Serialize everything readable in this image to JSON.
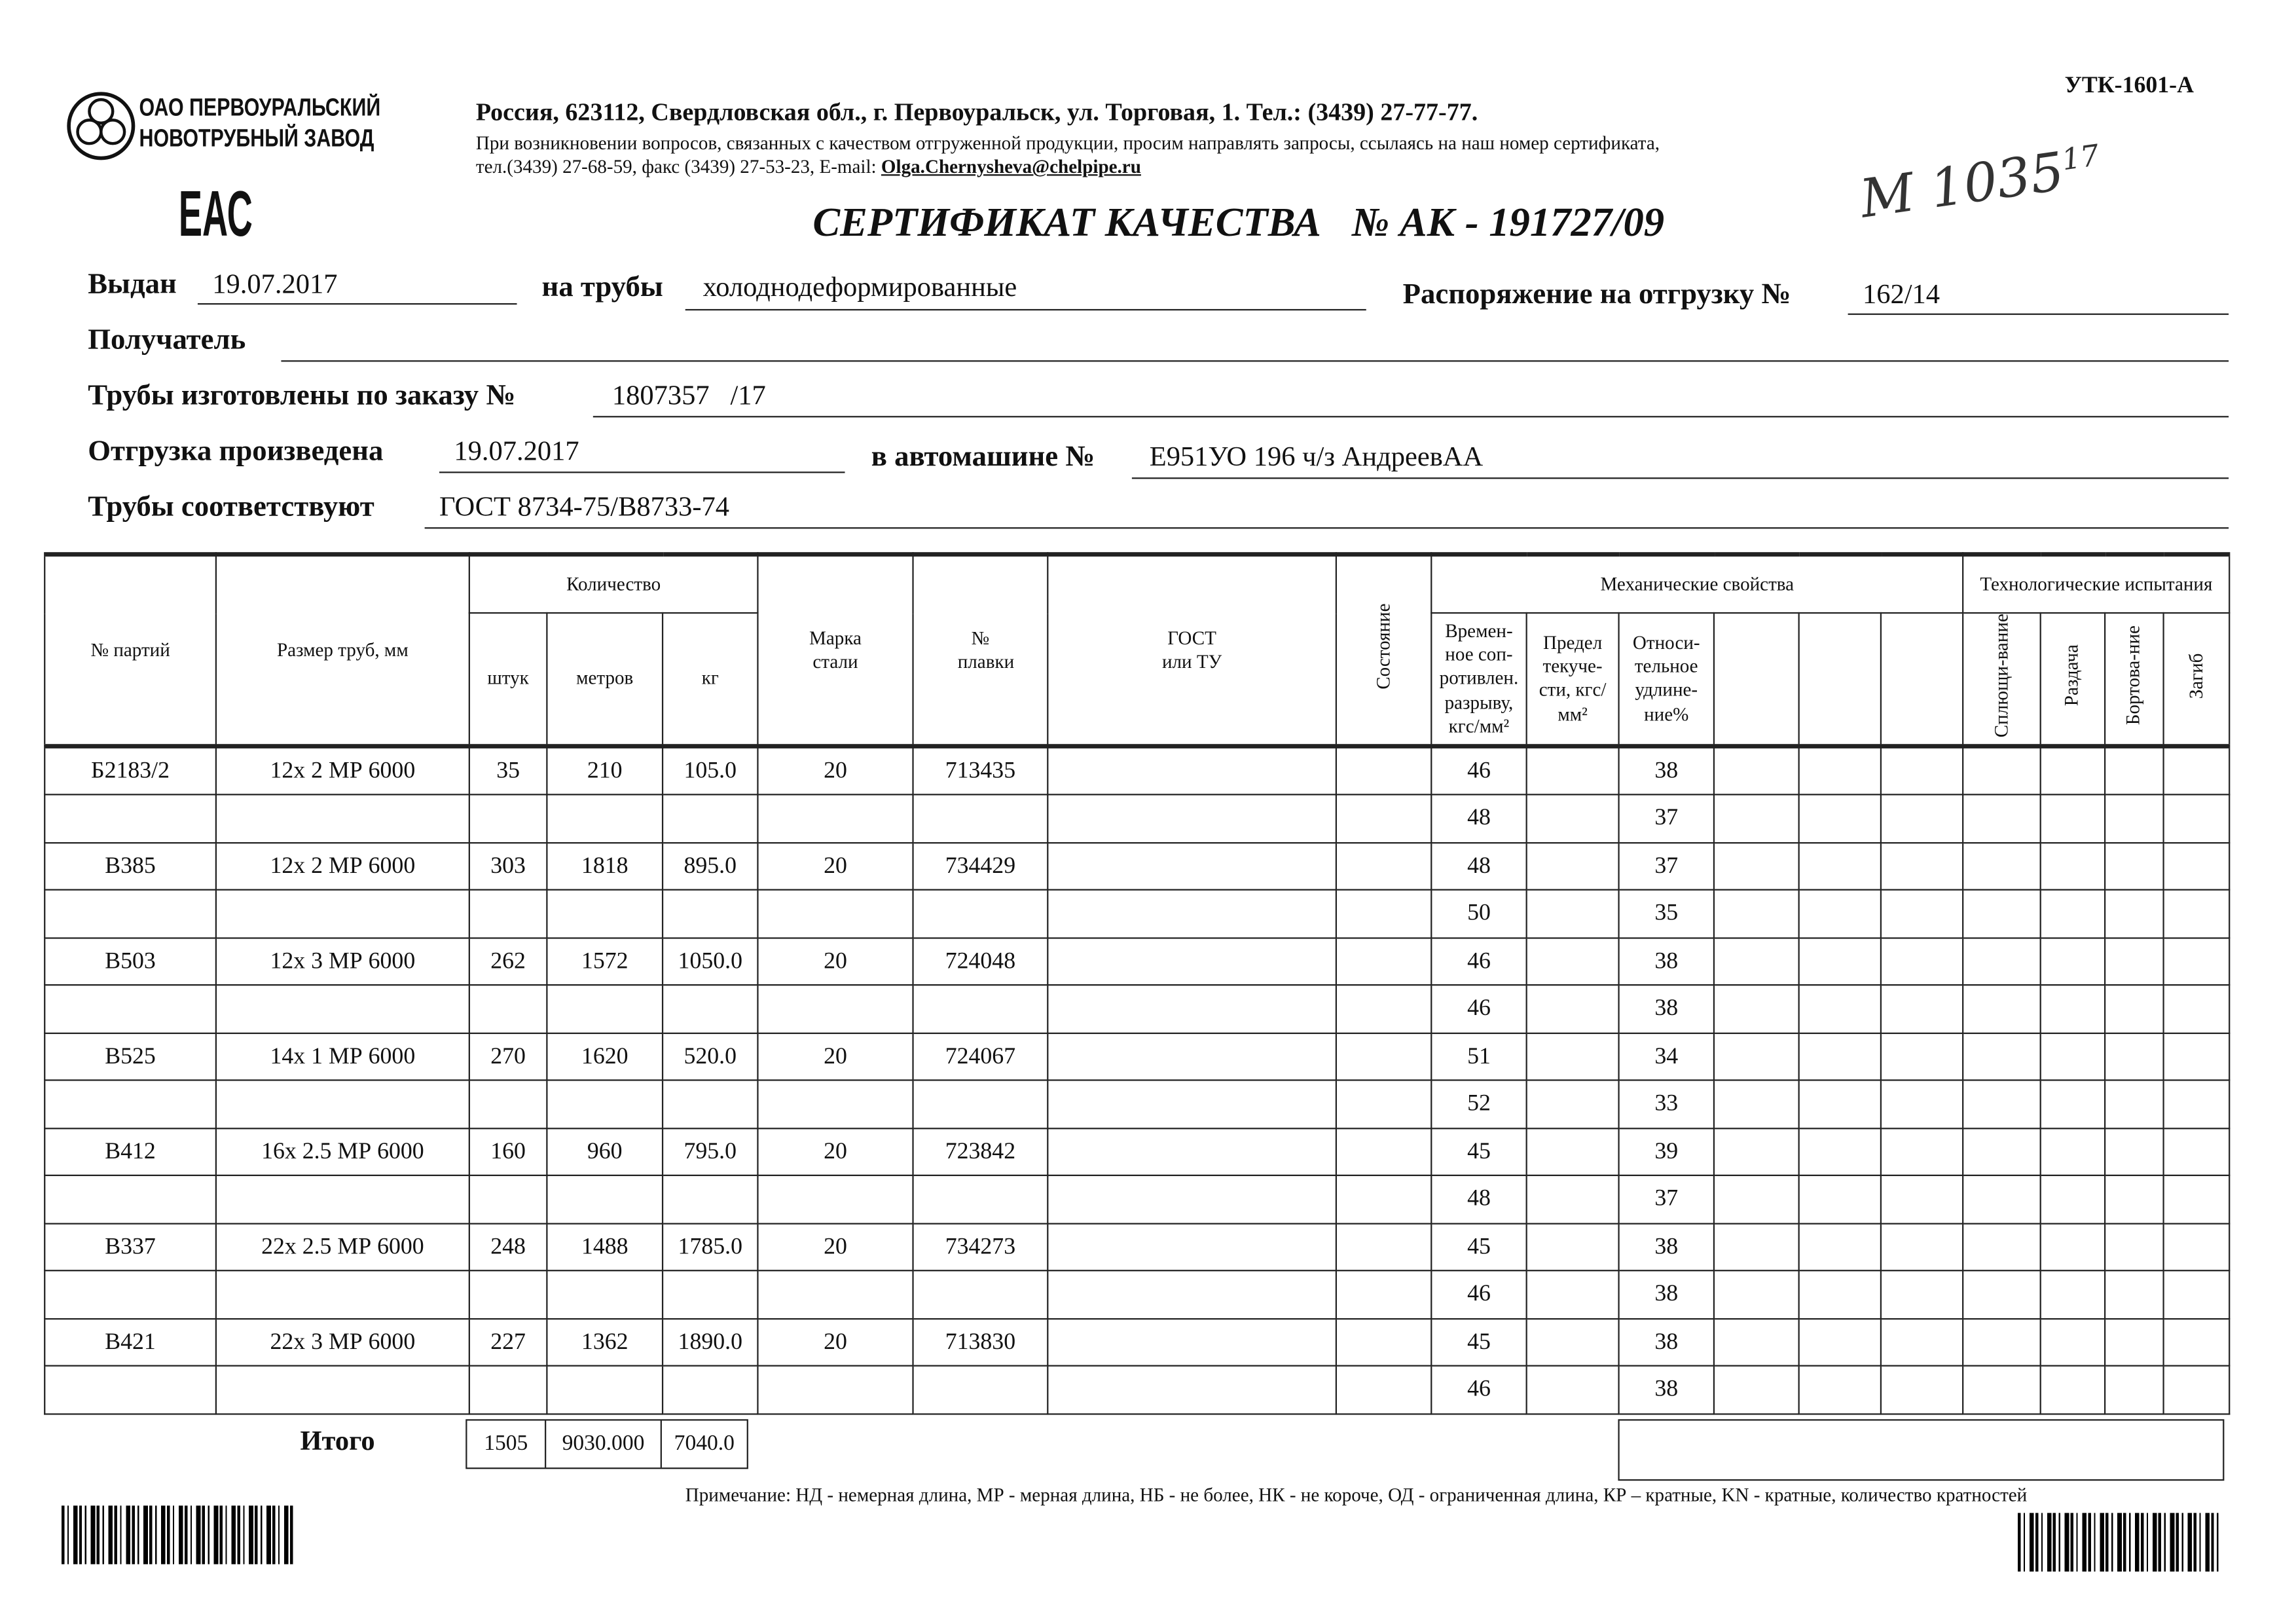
{
  "form_code": "УТК-1601-А",
  "company": {
    "line1": "ОАО ПЕРВОУРАЛЬСКИЙ",
    "line2": "НОВОТРУБНЫЙ ЗАВОД"
  },
  "eac_mark": "ЕАС",
  "address": "Россия, 623112, Свердловская обл., г. Первоуральск, ул. Торговая, 1. Тел.: (3439) 27-77-77.",
  "notice": "При возникновении вопросов, связанных с качеством отгруженной продукции, просим направлять запросы, ссылаясь на наш номер сертификата,",
  "contacts": "тел.(3439) 27-68-59, факс (3439) 27-53-23,  E-mail: ",
  "email": "Olga.Chernysheva@chelpipe.ru",
  "handwritten": "М 1035",
  "handwritten_sup": "17",
  "title": "СЕРТИФИКАТ КАЧЕСТВА   № АК - 191727/09",
  "fields": {
    "issued_label": "Выдан",
    "issued": "19.07.2017",
    "pipes_label": "на трубы",
    "pipes": "холоднодеформированные",
    "order_ship_label": "Распоряжение на отгрузку №",
    "order_ship": "162/14",
    "recipient_label": "Получатель",
    "recipient": "",
    "made_label": "Трубы изготовлены по заказу №",
    "made": "1807357   /17",
    "shipped_label": "Отгрузка произведена",
    "shipped": "19.07.2017",
    "truck_label": "в автомашине №",
    "truck": "Е951УО 196 ч/з АндреевАА",
    "conform_label": "Трубы соответствуют",
    "conform": "ГОСТ 8734-75/В8733-74"
  },
  "headers": {
    "party": "№ партий",
    "size": "Размер труб, мм",
    "qty": "Количество",
    "pcs": "штук",
    "meters": "метров",
    "kg": "кг",
    "steel": "Марка стали",
    "melt": "№ плавки",
    "gost": "ГОСТ или ТУ",
    "state": "Состояние",
    "mech": "Механические свойства",
    "tensile": "Времен-ное соп-ротивлен. разрыву, кгс/мм²",
    "yield": "Предел текуче-сти, кгс/мм²",
    "elong": "Относи-тельное удлине-ние%",
    "tech": "Технологические испытания",
    "flat": "Сплющи-вание",
    "expand": "Раздача",
    "flange": "Бортова-ние",
    "bend": "Загиб"
  },
  "rows": [
    {
      "party": "Б2183/2",
      "size": "12х 2 МР 6000",
      "pcs": "35",
      "meters": "210",
      "kg": "105.0",
      "steel": "20",
      "melt": "713435",
      "mech": [
        [
          "46",
          "38"
        ],
        [
          "48",
          "37"
        ]
      ]
    },
    {
      "party": "В385",
      "size": "12х 2 МР 6000",
      "pcs": "303",
      "meters": "1818",
      "kg": "895.0",
      "steel": "20",
      "melt": "734429",
      "mech": [
        [
          "48",
          "37"
        ],
        [
          "50",
          "35"
        ]
      ]
    },
    {
      "party": "В503",
      "size": "12х 3 МР 6000",
      "pcs": "262",
      "meters": "1572",
      "kg": "1050.0",
      "steel": "20",
      "melt": "724048",
      "mech": [
        [
          "46",
          "38"
        ],
        [
          "46",
          "38"
        ]
      ]
    },
    {
      "party": "В525",
      "size": "14х 1 МР 6000",
      "pcs": "270",
      "meters": "1620",
      "kg": "520.0",
      "steel": "20",
      "melt": "724067",
      "mech": [
        [
          "51",
          "34"
        ],
        [
          "52",
          "33"
        ]
      ]
    },
    {
      "party": "В412",
      "size": "16х 2.5 МР 6000",
      "pcs": "160",
      "meters": "960",
      "kg": "795.0",
      "steel": "20",
      "melt": "723842",
      "mech": [
        [
          "45",
          "39"
        ],
        [
          "48",
          "37"
        ]
      ]
    },
    {
      "party": "В337",
      "size": "22х 2.5 МР 6000",
      "pcs": "248",
      "meters": "1488",
      "kg": "1785.0",
      "steel": "20",
      "melt": "734273",
      "mech": [
        [
          "45",
          "38"
        ],
        [
          "46",
          "38"
        ]
      ]
    },
    {
      "party": "В421",
      "size": "22х 3 МР 6000",
      "pcs": "227",
      "meters": "1362",
      "kg": "1890.0",
      "steel": "20",
      "melt": "713830",
      "mech": [
        [
          "45",
          "38"
        ],
        [
          "46",
          "38"
        ]
      ]
    }
  ],
  "total": {
    "label": "Итого",
    "pcs": "1505",
    "meters": "9030.000",
    "kg": "7040.0"
  },
  "footnote": "Примечание: НД - немерная длина, МР - мерная длина, НБ - не более, НК - не короче, ОД - ограниченная длина, КР – кратные, KN - кратные, количество кратностей"
}
